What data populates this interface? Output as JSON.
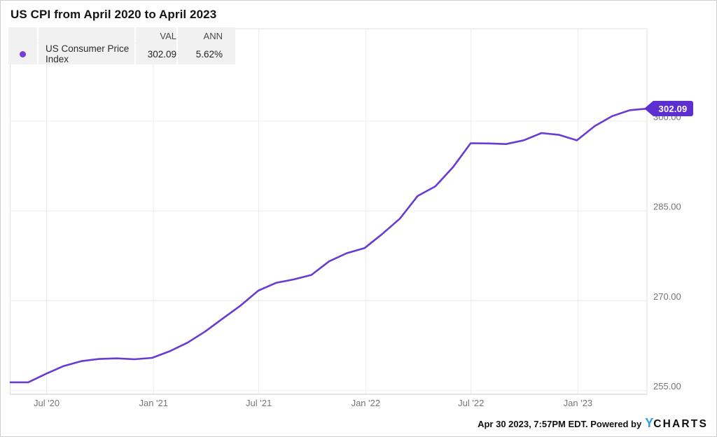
{
  "title": "US CPI from April 2020 to April 2023",
  "legend": {
    "col_val": "VAL",
    "col_ann": "ANN",
    "series_label": "US Consumer Price Index",
    "val": "302.09",
    "ann": "5.62%",
    "dot_color": "#7A3BDC"
  },
  "value_tag": "302.09",
  "footer": {
    "timestamp": "Apr 30 2023, 7:57PM EDT. Powered by",
    "logo_y": "Y",
    "logo_rest": "CHARTS",
    "logo_y_color": "#2B9FE8"
  },
  "colors": {
    "line": "#6A3BD2",
    "tag_bg": "#5E2FD0",
    "grid": "#EDEDED",
    "plot_border": "#E2E2E2",
    "axis_bottom": "#D7D7D7",
    "axis_text": "#757575",
    "legend_bg": "#F1F1F1"
  },
  "chart_data": {
    "type": "line",
    "title": "US CPI from April 2020 to April 2023",
    "series": [
      {
        "name": "US Consumer Price Index",
        "color": "#6A3BD2",
        "start": "Apr 2020",
        "end": "Apr 2023",
        "frequency": "monthly",
        "values": [
          256.39,
          256.39,
          257.8,
          259.1,
          259.92,
          260.28,
          260.39,
          260.23,
          260.47,
          261.58,
          263.01,
          264.88,
          267.05,
          269.2,
          271.7,
          273.0,
          273.57,
          274.31,
          276.59,
          277.95,
          278.8,
          281.15,
          283.72,
          287.5,
          289.11,
          292.3,
          296.31,
          296.28,
          296.17,
          296.81,
          298.01,
          297.71,
          296.8,
          299.17,
          300.84,
          301.84,
          302.09
        ],
        "last_value": 302.09,
        "annualized_growth_pct": 5.62
      }
    ],
    "x_ticks": [
      {
        "label": "Jul '20",
        "month_offset": 2.04
      },
      {
        "label": "Jan '21",
        "month_offset": 8.08
      },
      {
        "label": "Jul '21",
        "month_offset": 14.03
      },
      {
        "label": "Jan '22",
        "month_offset": 20.07
      },
      {
        "label": "Jul '22",
        "month_offset": 26.02
      },
      {
        "label": "Jan '23",
        "month_offset": 32.06
      }
    ],
    "y_ticks": [
      {
        "label": "255.00",
        "value": 255
      },
      {
        "label": "270.00",
        "value": 270
      },
      {
        "label": "285.00",
        "value": 285
      },
      {
        "label": "300.00",
        "value": 300
      }
    ],
    "ylim": [
      254.5,
      315.5
    ],
    "grid": true,
    "legend_position": "top-left",
    "y_axis_side": "right"
  }
}
